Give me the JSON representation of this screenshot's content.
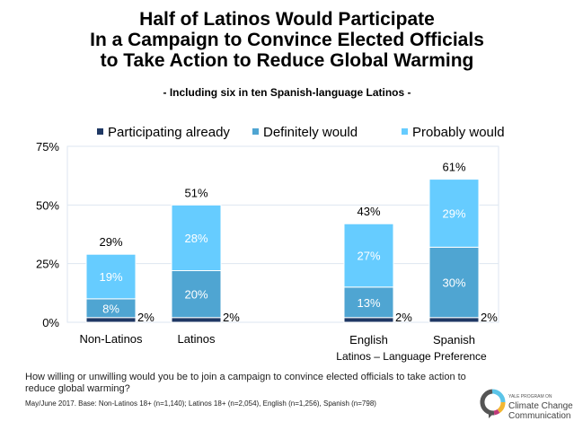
{
  "title_lines": [
    "Half of Latinos Would Participate",
    "In a Campaign to Convince Elected Officials",
    "to Take Action to Reduce Global Warming"
  ],
  "subtitle": "- Including six in ten Spanish-language Latinos -",
  "question": "How willing or unwilling would you be to join a campaign to convince elected officials to take action to reduce global warming?",
  "base_note": "May/June 2017. Base: Non-Latinos 18+ (n=1,140); Latinos 18+ (n=2,054), English (n=1,256), Spanish (n=798)",
  "logo": {
    "line1": "YALE PROGRAM ON",
    "line2": "Climate Change",
    "line3": "Communication"
  },
  "chart_data": {
    "type": "bar",
    "stacked": true,
    "categories": [
      "Non-Latinos",
      "Latinos",
      "English",
      "Spanish"
    ],
    "group_label": "Latinos – Language Preference",
    "series": [
      {
        "name": "Participating already",
        "color": "#1f3864",
        "values": [
          2,
          2,
          2,
          2
        ]
      },
      {
        "name": "Definitely would",
        "color": "#4fa5d2",
        "values": [
          8,
          20,
          13,
          30
        ]
      },
      {
        "name": "Probably would",
        "color": "#66ccff",
        "values": [
          19,
          28,
          27,
          29
        ]
      }
    ],
    "totals": [
      29,
      51,
      43,
      61
    ],
    "yticks": [
      "0%",
      "25%",
      "50%",
      "75%"
    ],
    "ylim": [
      0,
      75
    ],
    "grid": true,
    "legend": "top"
  }
}
